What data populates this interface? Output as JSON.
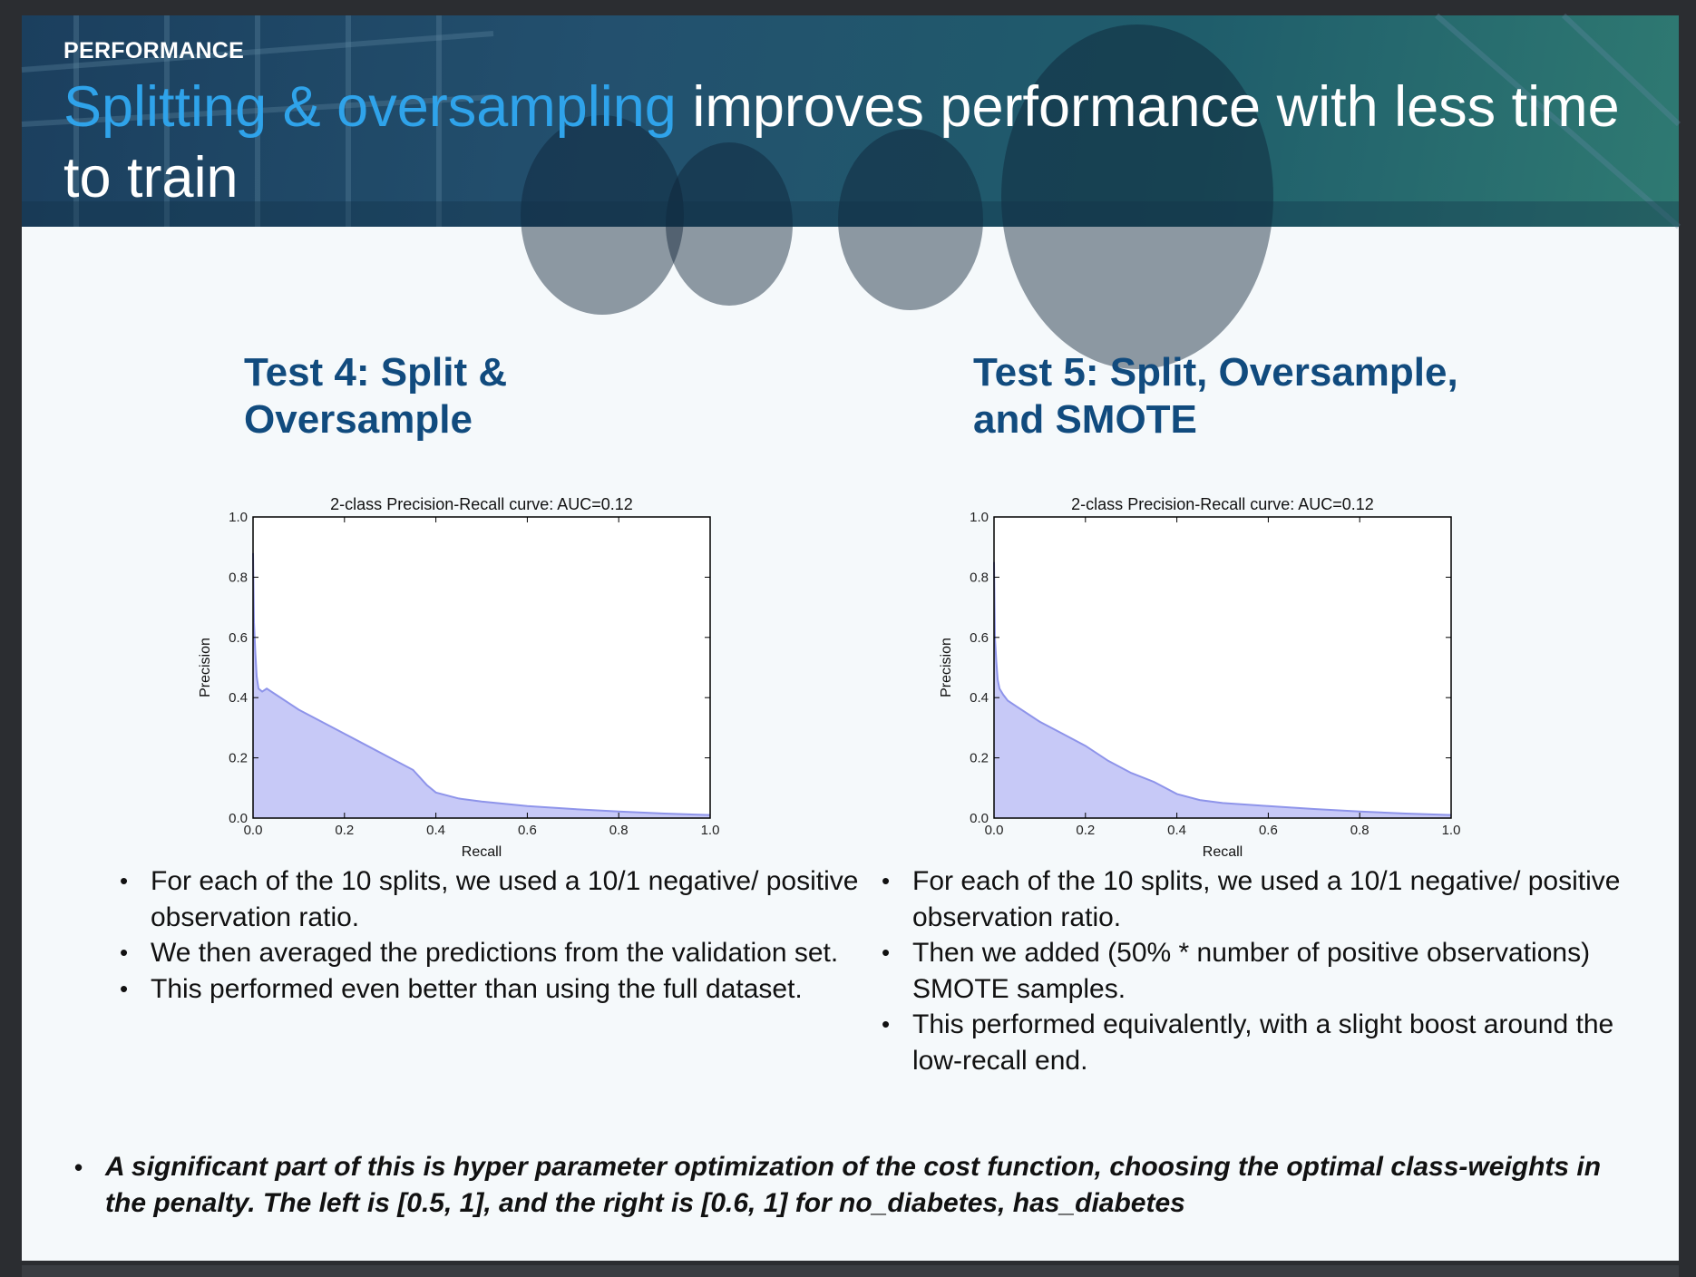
{
  "header": {
    "kicker": "PERFORMANCE",
    "title_highlight": "Splitting & oversampling",
    "title_rest": " improves performance with less time to train"
  },
  "panels": [
    {
      "title": "Test 4: Split & Oversample",
      "bullets": [
        "For each of the 10 splits, we used a 10/1 negative/ positive observation ratio.",
        "We then averaged the predictions from the validation set.",
        "This performed even better than using the full dataset."
      ]
    },
    {
      "title": "Test 5: Split, Oversample, and SMOTE",
      "bullets": [
        "For each of the 10 splits, we used a 10/1 negative/ positive observation ratio.",
        "Then we added (50% * number of positive observations) SMOTE samples.",
        "This performed equivalently, with a slight boost around the low-recall end."
      ]
    }
  ],
  "note": "A significant part of this is hyper parameter optimization of the cost function, choosing the optimal class-weights in the penalty. The left is [0.5, 1], and the right is [0.6, 1] for no_diabetes, has_diabetes",
  "chart_data": [
    {
      "type": "area",
      "title": "2-class Precision-Recall curve: AUC=0.12",
      "xlabel": "Recall",
      "ylabel": "Precision",
      "xlim": [
        0,
        1
      ],
      "ylim": [
        0,
        1
      ],
      "xticks": [
        "0.0",
        "0.2",
        "0.4",
        "0.6",
        "0.8",
        "1.0"
      ],
      "yticks": [
        "0.0",
        "0.2",
        "0.4",
        "0.6",
        "0.8",
        "1.0"
      ],
      "grid": false,
      "fill_color": "#c7c9f7",
      "line_color": "#8e94ea",
      "x": [
        0.0,
        0.002,
        0.005,
        0.008,
        0.012,
        0.02,
        0.03,
        0.05,
        0.08,
        0.1,
        0.15,
        0.2,
        0.25,
        0.3,
        0.35,
        0.38,
        0.4,
        0.45,
        0.5,
        0.6,
        0.7,
        0.8,
        0.9,
        1.0
      ],
      "y": [
        0.88,
        0.65,
        0.55,
        0.47,
        0.43,
        0.42,
        0.43,
        0.41,
        0.38,
        0.36,
        0.32,
        0.28,
        0.24,
        0.2,
        0.16,
        0.11,
        0.085,
        0.065,
        0.055,
        0.04,
        0.03,
        0.022,
        0.015,
        0.01
      ]
    },
    {
      "type": "area",
      "title": "2-class Precision-Recall curve: AUC=0.12",
      "xlabel": "Recall",
      "ylabel": "Precision",
      "xlim": [
        0,
        1
      ],
      "ylim": [
        0,
        1
      ],
      "xticks": [
        "0.0",
        "0.2",
        "0.4",
        "0.6",
        "0.8",
        "1.0"
      ],
      "yticks": [
        "0.0",
        "0.2",
        "0.4",
        "0.6",
        "0.8",
        "1.0"
      ],
      "grid": false,
      "fill_color": "#c7c9f7",
      "line_color": "#8e94ea",
      "x": [
        0.0,
        0.002,
        0.005,
        0.008,
        0.012,
        0.02,
        0.03,
        0.05,
        0.08,
        0.1,
        0.15,
        0.2,
        0.25,
        0.3,
        0.35,
        0.4,
        0.45,
        0.5,
        0.6,
        0.7,
        0.8,
        0.9,
        1.0
      ],
      "y": [
        0.85,
        0.6,
        0.52,
        0.46,
        0.43,
        0.41,
        0.39,
        0.37,
        0.34,
        0.32,
        0.28,
        0.24,
        0.19,
        0.15,
        0.12,
        0.08,
        0.06,
        0.05,
        0.04,
        0.03,
        0.022,
        0.015,
        0.01
      ]
    }
  ]
}
